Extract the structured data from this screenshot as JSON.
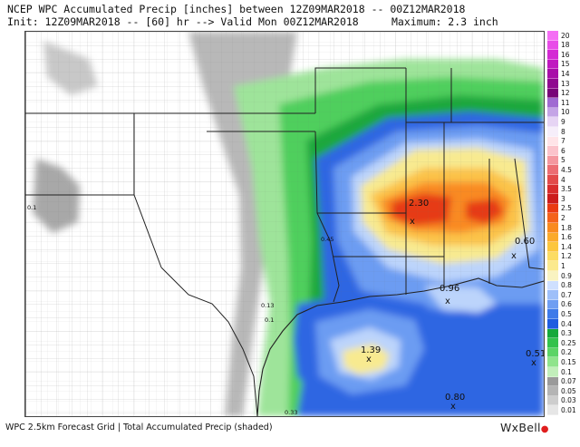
{
  "header": {
    "line1": "NCEP WPC Accumulated Precip [inches] between 12Z09MAR2018 -- 00Z12MAR2018",
    "line2": "Init: 12Z09MAR2018 -- [60] hr --> Valid Mon 00Z12MAR2018",
    "maximum": "Maximum: 2.3 inch"
  },
  "footer": {
    "text": "WPC 2.5km Forecast Grid | Total Accumulated Precip (shaded)",
    "logo": "WxBell"
  },
  "legend": {
    "items": [
      {
        "label": "20",
        "color": "#f46ef4"
      },
      {
        "label": "18",
        "color": "#e84ce8"
      },
      {
        "label": "16",
        "color": "#d42ad4"
      },
      {
        "label": "15",
        "color": "#c018c0"
      },
      {
        "label": "14",
        "color": "#a80ea8"
      },
      {
        "label": "13",
        "color": "#900890"
      },
      {
        "label": "12",
        "color": "#780478"
      },
      {
        "label": "11",
        "color": "#a06ad2"
      },
      {
        "label": "10",
        "color": "#c4a4e6"
      },
      {
        "label": "9",
        "color": "#e6d4f4"
      },
      {
        "label": "8",
        "color": "#f6eefa"
      },
      {
        "label": "7",
        "color": "#ffe4e8"
      },
      {
        "label": "6",
        "color": "#fbc3cb"
      },
      {
        "label": "5",
        "color": "#f4979f"
      },
      {
        "label": "4.5",
        "color": "#ec6d73"
      },
      {
        "label": "4",
        "color": "#e24a4a"
      },
      {
        "label": "3.5",
        "color": "#d82c2c"
      },
      {
        "label": "3",
        "color": "#cc1c1c"
      },
      {
        "label": "2.5",
        "color": "#ea3a12"
      },
      {
        "label": "2",
        "color": "#f4621a"
      },
      {
        "label": "1.8",
        "color": "#f98a1f"
      },
      {
        "label": "1.6",
        "color": "#fbaa2b"
      },
      {
        "label": "1.4",
        "color": "#fcc63e"
      },
      {
        "label": "1.2",
        "color": "#fcdc63"
      },
      {
        "label": "1",
        "color": "#fbe98e"
      },
      {
        "label": "0.9",
        "color": "#f9f3c1"
      },
      {
        "label": "0.8",
        "color": "#cfe0ff"
      },
      {
        "label": "0.7",
        "color": "#9ebff9"
      },
      {
        "label": "0.6",
        "color": "#6f9ef2"
      },
      {
        "label": "0.5",
        "color": "#3e7ae9"
      },
      {
        "label": "0.4",
        "color": "#1e5ce0"
      },
      {
        "label": "0.3",
        "color": "#15a83a"
      },
      {
        "label": "0.25",
        "color": "#33c24c"
      },
      {
        "label": "0.2",
        "color": "#5cd466"
      },
      {
        "label": "0.15",
        "color": "#8fe48c"
      },
      {
        "label": "0.1",
        "color": "#c2efbb"
      },
      {
        "label": "0.07",
        "color": "#9a9a9a"
      },
      {
        "label": "0.05",
        "color": "#b4b4b4"
      },
      {
        "label": "0.03",
        "color": "#cdcdcd"
      },
      {
        "label": "0.01",
        "color": "#e6e6e6"
      }
    ]
  },
  "values": [
    {
      "id": "max-central",
      "label": "2.30"
    },
    {
      "id": "al-east",
      "label": "0.60"
    },
    {
      "id": "gulf-coast",
      "label": "0.96"
    },
    {
      "id": "gulf-max",
      "label": "1.39"
    },
    {
      "id": "gulf-east",
      "label": "0.51"
    },
    {
      "id": "gulf-south",
      "label": "0.80"
    },
    {
      "id": "tx-west",
      "label": "0.1"
    },
    {
      "id": "tx-sabine",
      "label": "0.45"
    },
    {
      "id": "tx-coast-1",
      "label": "0.13"
    },
    {
      "id": "tx-coast-2",
      "label": "0.1"
    },
    {
      "id": "tx-south",
      "label": "0.33"
    }
  ]
}
